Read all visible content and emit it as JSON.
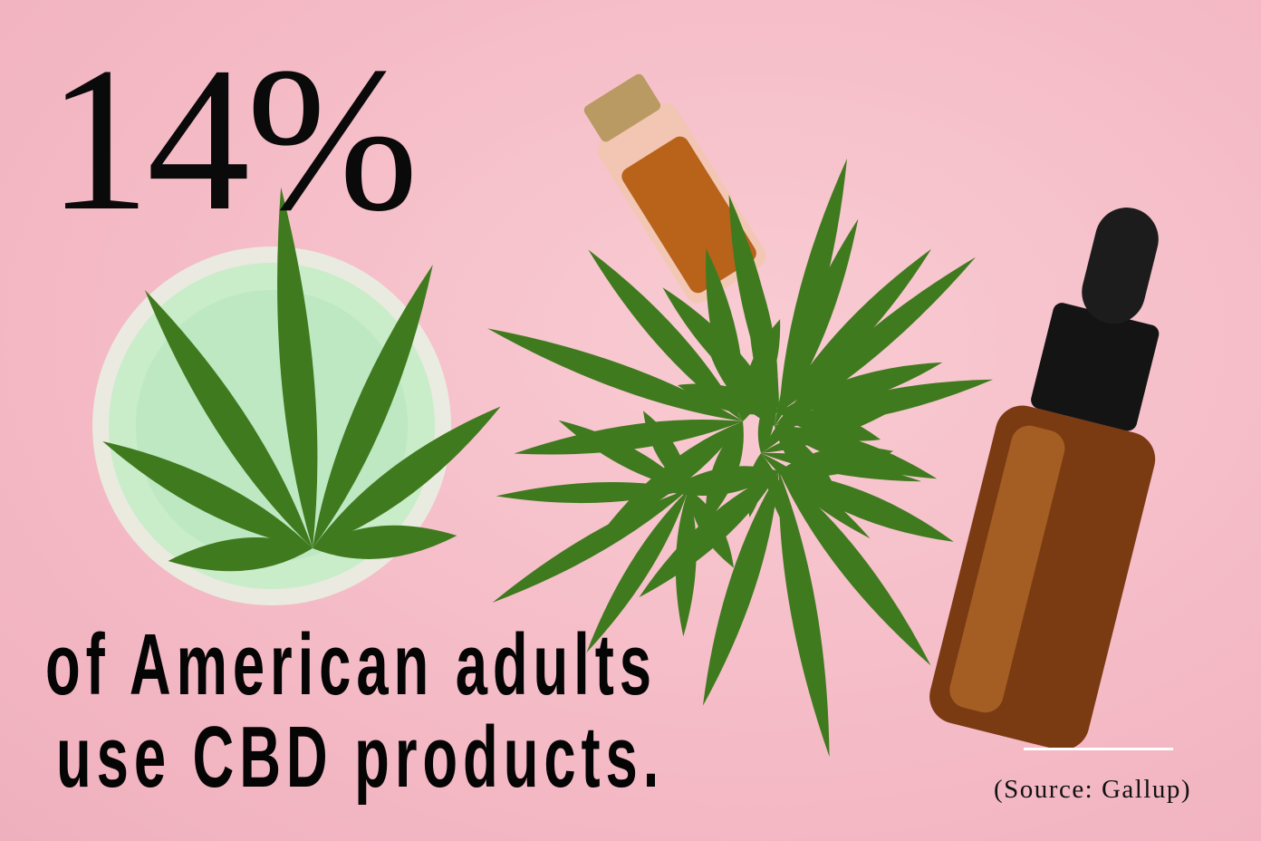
{
  "headline": {
    "stat": "14%"
  },
  "caption": {
    "line1": "of American adults",
    "line2": "use CBD products."
  },
  "source": "(Source: Gallup)",
  "colors": {
    "background": "#f4bac5",
    "text": "#0a0a0a",
    "leaf": "#3f7a1e",
    "oil": "#b8621a",
    "balm": "#bfe8c4"
  }
}
